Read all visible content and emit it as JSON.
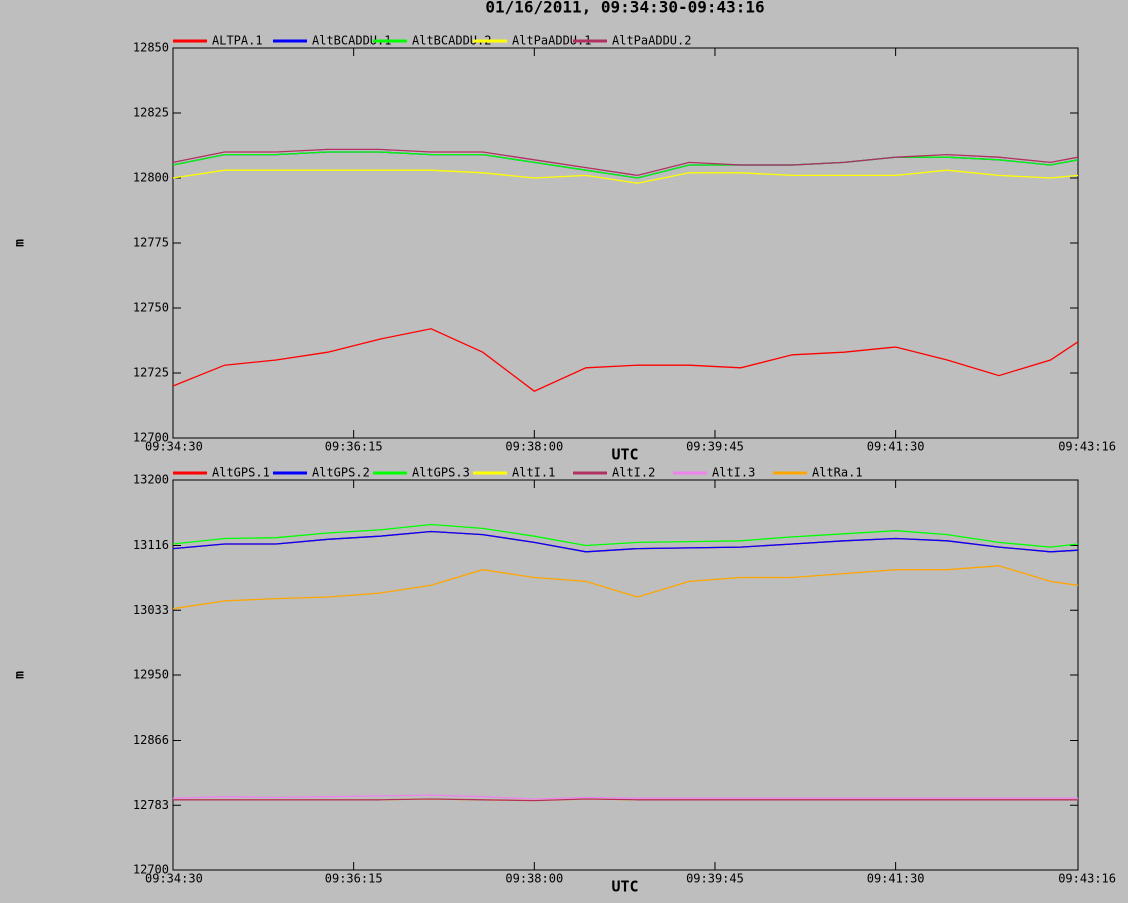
{
  "title": "01/16/2011, 09:34:30-09:43:16",
  "chart_data": [
    {
      "type": "line",
      "xlabel": "UTC",
      "ylabel": "m",
      "x": [
        "09:34:30",
        "09:35:00",
        "09:35:30",
        "09:36:00",
        "09:36:30",
        "09:37:00",
        "09:37:30",
        "09:38:00",
        "09:38:30",
        "09:39:00",
        "09:39:30",
        "09:40:00",
        "09:40:30",
        "09:41:00",
        "09:41:30",
        "09:42:00",
        "09:42:30",
        "09:43:00",
        "09:43:16"
      ],
      "xlim": [
        "09:34:30",
        "09:43:16"
      ],
      "xticks": [
        "09:34:30",
        "09:36:15",
        "09:38:00",
        "09:39:45",
        "09:41:30",
        "09:43:16"
      ],
      "ylim": [
        12700,
        12850
      ],
      "yticks": [
        12700,
        12725,
        12750,
        12775,
        12800,
        12825,
        12850
      ],
      "series": [
        {
          "name": "ALTPA.1",
          "color": "#ff0000",
          "values": [
            12720,
            12728,
            12730,
            12733,
            12738,
            12742,
            12733,
            12718,
            12727,
            12728,
            12728,
            12727,
            12732,
            12733,
            12735,
            12730,
            12724,
            12730,
            12737
          ]
        },
        {
          "name": "AltBCADDU.1",
          "color": "#0000ff",
          "values": [
            12805,
            12809,
            12809,
            12810,
            12810,
            12809,
            12809,
            12806,
            12803,
            12800,
            12805,
            12805,
            12805,
            12806,
            12808,
            12808,
            12807,
            12805,
            12807
          ]
        },
        {
          "name": "AltBCADDU.2",
          "color": "#00ff00",
          "values": [
            12805,
            12809,
            12809,
            12810,
            12810,
            12809,
            12809,
            12806,
            12803,
            12800,
            12805,
            12805,
            12805,
            12806,
            12808,
            12808,
            12807,
            12805,
            12807
          ]
        },
        {
          "name": "AltPaADDU.1",
          "color": "#ffff00",
          "values": [
            12800,
            12803,
            12803,
            12803,
            12803,
            12803,
            12802,
            12800,
            12801,
            12798,
            12802,
            12802,
            12801,
            12801,
            12801,
            12803,
            12801,
            12800,
            12801
          ]
        },
        {
          "name": "AltPaADDU.2",
          "color": "#b03060",
          "values": [
            12806,
            12810,
            12810,
            12811,
            12811,
            12810,
            12810,
            12807,
            12804,
            12801,
            12806,
            12805,
            12805,
            12806,
            12808,
            12809,
            12808,
            12806,
            12808
          ]
        }
      ]
    },
    {
      "type": "line",
      "xlabel": "UTC",
      "ylabel": "m",
      "x": [
        "09:34:30",
        "09:35:00",
        "09:35:30",
        "09:36:00",
        "09:36:30",
        "09:37:00",
        "09:37:30",
        "09:38:00",
        "09:38:30",
        "09:39:00",
        "09:39:30",
        "09:40:00",
        "09:40:30",
        "09:41:00",
        "09:41:30",
        "09:42:00",
        "09:42:30",
        "09:43:00",
        "09:43:16"
      ],
      "xlim": [
        "09:34:30",
        "09:43:16"
      ],
      "xticks": [
        "09:34:30",
        "09:36:15",
        "09:38:00",
        "09:39:45",
        "09:41:30",
        "09:43:16"
      ],
      "ylim": [
        12700,
        13200
      ],
      "yticks": [
        12700,
        12783,
        12866,
        12950,
        13033,
        13116,
        13200
      ],
      "series": [
        {
          "name": "AltGPS.1",
          "color": "#ff0000",
          "values": [
            13112,
            13118,
            13118,
            13124,
            13128,
            13134,
            13130,
            13120,
            13108,
            13112,
            13113,
            13114,
            13118,
            13122,
            13125,
            13122,
            13114,
            13108,
            13110
          ]
        },
        {
          "name": "AltGPS.2",
          "color": "#0000ff",
          "values": [
            13112,
            13118,
            13118,
            13124,
            13128,
            13134,
            13130,
            13120,
            13108,
            13112,
            13113,
            13114,
            13118,
            13122,
            13125,
            13122,
            13114,
            13108,
            13110
          ]
        },
        {
          "name": "AltGPS.3",
          "color": "#00ff00",
          "values": [
            13118,
            13125,
            13126,
            13132,
            13136,
            13143,
            13138,
            13128,
            13116,
            13120,
            13121,
            13122,
            13127,
            13131,
            13135,
            13130,
            13120,
            13114,
            13118
          ]
        },
        {
          "name": "AltI.1",
          "color": "#ffff00",
          "values": [
            12790,
            12790,
            12790,
            12790,
            12790,
            12791,
            12790,
            12789,
            12791,
            12790,
            12790,
            12790,
            12790,
            12790,
            12790,
            12790,
            12790,
            12790,
            12790
          ]
        },
        {
          "name": "AltI.2",
          "color": "#b03060",
          "values": [
            12790,
            12790,
            12790,
            12790,
            12790,
            12791,
            12790,
            12789,
            12791,
            12790,
            12790,
            12790,
            12790,
            12790,
            12790,
            12790,
            12790,
            12790,
            12790
          ]
        },
        {
          "name": "AltI.3",
          "color": "#ee82ee",
          "values": [
            12792,
            12794,
            12793,
            12794,
            12795,
            12796,
            12794,
            12791,
            12793,
            12792,
            12792,
            12792,
            12792,
            12792,
            12792,
            12792,
            12792,
            12792,
            12792
          ]
        },
        {
          "name": "AltRa.1",
          "color": "#ffa500",
          "values": [
            13035,
            13045,
            13048,
            13050,
            13055,
            13065,
            13085,
            13075,
            13070,
            13050,
            13070,
            13075,
            13075,
            13080,
            13085,
            13085,
            13090,
            13070,
            13065
          ]
        }
      ]
    }
  ]
}
